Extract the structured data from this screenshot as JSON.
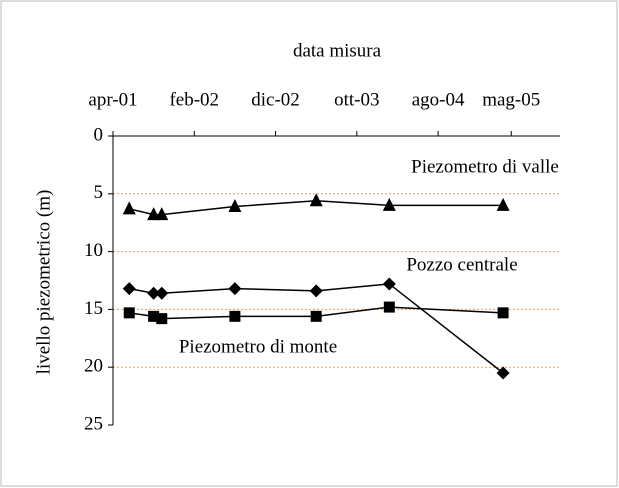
{
  "chart_data": {
    "type": "line",
    "x_label": "data misura",
    "y_label": "livello piezometrico (m)",
    "xlim": [
      "2001-04",
      "2005-11"
    ],
    "xticks": [
      {
        "value": "2001-04",
        "label": "apr-01"
      },
      {
        "value": "2002-02",
        "label": "feb-02"
      },
      {
        "value": "2002-12",
        "label": "dic-02"
      },
      {
        "value": "2003-10",
        "label": "ott-03"
      },
      {
        "value": "2004-08",
        "label": "ago-04"
      },
      {
        "value": "2005-05",
        "label": "mag-05"
      }
    ],
    "ylim": [
      0,
      25
    ],
    "yticks": [
      0,
      5,
      10,
      15,
      20,
      25
    ],
    "y_inverted": true,
    "grid": true,
    "grid_color": "#e8a060",
    "series": [
      {
        "name": "Piezometro di valle",
        "color": "#000000",
        "marker": "triangle",
        "x": [
          "2001-06",
          "2001-09",
          "2001-10",
          "2002-07",
          "2003-05",
          "2004-02",
          "2005-04"
        ],
        "values": [
          6.3,
          6.8,
          6.8,
          6.1,
          5.6,
          6.0,
          6.0
        ]
      },
      {
        "name": "Pozzo centrale",
        "color": "#000000",
        "marker": "diamond",
        "x": [
          "2001-06",
          "2001-09",
          "2001-10",
          "2002-07",
          "2003-05",
          "2004-02",
          "2005-04"
        ],
        "values": [
          13.2,
          13.6,
          13.6,
          13.2,
          13.4,
          12.8,
          20.5
        ]
      },
      {
        "name": "Piezometro di monte",
        "color": "#000000",
        "marker": "square",
        "x": [
          "2001-06",
          "2001-09",
          "2001-10",
          "2002-07",
          "2003-05",
          "2004-02",
          "2005-04"
        ],
        "values": [
          15.3,
          15.6,
          15.8,
          15.6,
          15.6,
          14.8,
          15.3
        ]
      }
    ]
  }
}
